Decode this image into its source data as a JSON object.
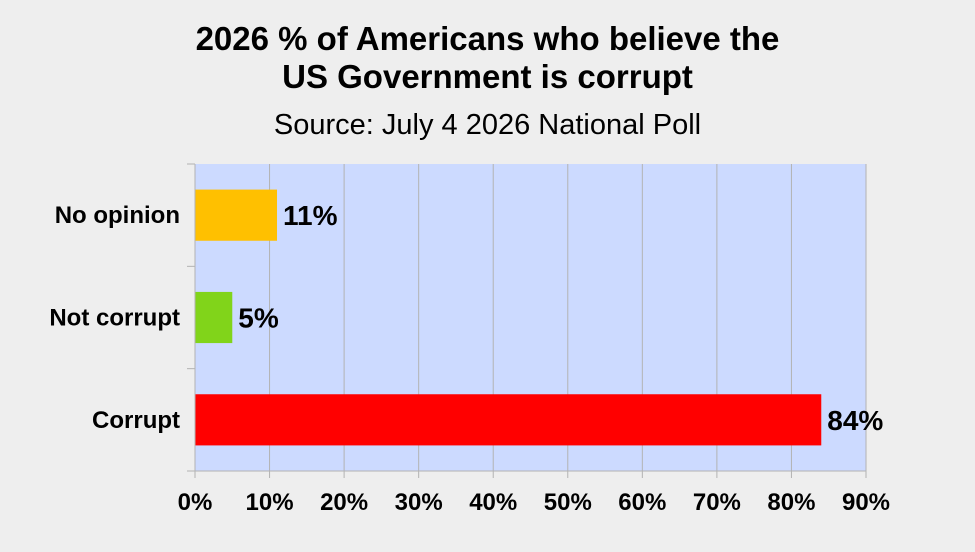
{
  "chart_data": {
    "type": "bar",
    "orientation": "horizontal",
    "title_lines": [
      "2026 % of Americans who believe the",
      "US Government is corrupt"
    ],
    "subtitle": "Source: July 4 2026 National Poll",
    "categories": [
      "No opinion",
      "Not corrupt",
      "Corrupt"
    ],
    "values": [
      11,
      5,
      84
    ],
    "data_labels": [
      "11%",
      "5%",
      "84%"
    ],
    "colors": [
      "#ffc000",
      "#81d41a",
      "#ff0000"
    ],
    "xlim": [
      0,
      90
    ],
    "xticks": [
      0,
      10,
      20,
      30,
      40,
      50,
      60,
      70,
      80,
      90
    ],
    "xtick_labels": [
      "0%",
      "10%",
      "20%",
      "30%",
      "40%",
      "50%",
      "60%",
      "70%",
      "80%",
      "90%"
    ],
    "xlabel": "",
    "ylabel": "",
    "grid": true,
    "plot_background": "#ccdaff",
    "page_background": "#eeeeee"
  }
}
